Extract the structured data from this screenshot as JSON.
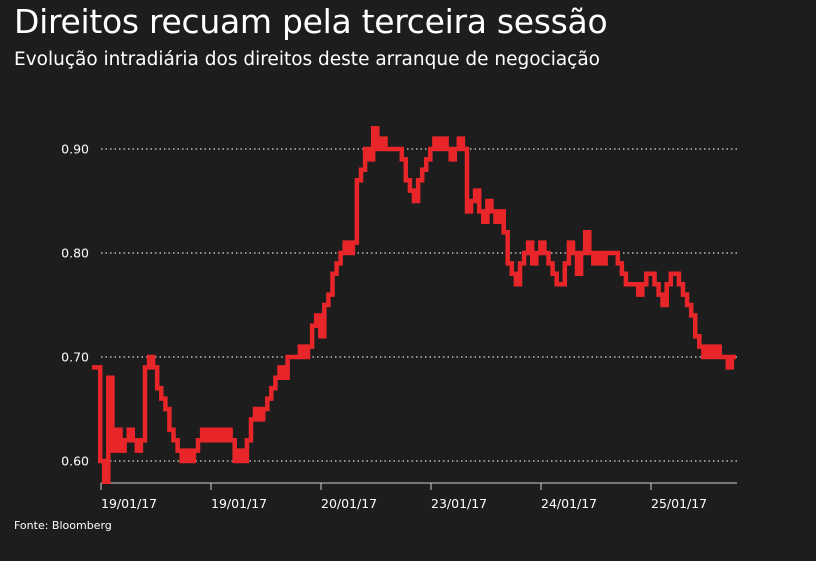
{
  "title": "Direitos recuam pela terceira sessão",
  "subtitle": "Evolução intradiária dos direitos deste arranque de negociação",
  "source": "Fonte: Bloomberg",
  "chart_data": {
    "type": "line",
    "title": "Direitos recuam pela terceira sessão",
    "subtitle": "Evolução intradiária dos direitos deste arranque de negociação",
    "xlabel": "",
    "ylabel": "",
    "ylim": [
      0.58,
      0.93
    ],
    "y_ticks": [
      "0.60",
      "0.70",
      "0.80",
      "0.90"
    ],
    "y_tick_values": [
      0.6,
      0.7,
      0.8,
      0.9
    ],
    "x_ticks": [
      "19/01/17",
      "19/01/17",
      "20/01/17",
      "23/01/17",
      "24/01/17",
      "25/01/17"
    ],
    "grid": "horizontal dotted",
    "line_color": "#e8262a",
    "series": [
      {
        "name": "",
        "points": [
          [
            0,
            0.69
          ],
          [
            1,
            0.69
          ],
          [
            2,
            0.6
          ],
          [
            3,
            0.58
          ],
          [
            4,
            0.68
          ],
          [
            5,
            0.61
          ],
          [
            6,
            0.63
          ],
          [
            7,
            0.61
          ],
          [
            8,
            0.62
          ],
          [
            9,
            0.63
          ],
          [
            10,
            0.62
          ],
          [
            11,
            0.61
          ],
          [
            12,
            0.62
          ],
          [
            13,
            0.69
          ],
          [
            14,
            0.7
          ],
          [
            15,
            0.69
          ],
          [
            16,
            0.67
          ],
          [
            17,
            0.66
          ],
          [
            18,
            0.65
          ],
          [
            19,
            0.63
          ],
          [
            20,
            0.62
          ],
          [
            21,
            0.61
          ],
          [
            22,
            0.6
          ],
          [
            23,
            0.61
          ],
          [
            24,
            0.6
          ],
          [
            25,
            0.61
          ],
          [
            26,
            0.62
          ],
          [
            27,
            0.63
          ],
          [
            28,
            0.62
          ],
          [
            29,
            0.63
          ],
          [
            30,
            0.62
          ],
          [
            31,
            0.63
          ],
          [
            32,
            0.62
          ],
          [
            33,
            0.63
          ],
          [
            34,
            0.62
          ],
          [
            35,
            0.6
          ],
          [
            36,
            0.61
          ],
          [
            37,
            0.6
          ],
          [
            38,
            0.62
          ],
          [
            39,
            0.64
          ],
          [
            40,
            0.65
          ],
          [
            41,
            0.64
          ],
          [
            42,
            0.65
          ],
          [
            43,
            0.66
          ],
          [
            44,
            0.67
          ],
          [
            45,
            0.68
          ],
          [
            46,
            0.69
          ],
          [
            47,
            0.68
          ],
          [
            48,
            0.7
          ],
          [
            49,
            0.7
          ],
          [
            50,
            0.7
          ],
          [
            51,
            0.71
          ],
          [
            52,
            0.7
          ],
          [
            53,
            0.71
          ],
          [
            54,
            0.73
          ],
          [
            55,
            0.74
          ],
          [
            56,
            0.72
          ],
          [
            57,
            0.75
          ],
          [
            58,
            0.76
          ],
          [
            59,
            0.78
          ],
          [
            60,
            0.79
          ],
          [
            61,
            0.8
          ],
          [
            62,
            0.81
          ],
          [
            63,
            0.8
          ],
          [
            64,
            0.81
          ],
          [
            65,
            0.87
          ],
          [
            66,
            0.88
          ],
          [
            67,
            0.9
          ],
          [
            68,
            0.89
          ],
          [
            69,
            0.92
          ],
          [
            70,
            0.9
          ],
          [
            71,
            0.91
          ],
          [
            72,
            0.9
          ],
          [
            73,
            0.9
          ],
          [
            74,
            0.9
          ],
          [
            75,
            0.9
          ],
          [
            76,
            0.89
          ],
          [
            77,
            0.87
          ],
          [
            78,
            0.86
          ],
          [
            79,
            0.85
          ],
          [
            80,
            0.87
          ],
          [
            81,
            0.88
          ],
          [
            82,
            0.89
          ],
          [
            83,
            0.9
          ],
          [
            84,
            0.91
          ],
          [
            85,
            0.9
          ],
          [
            86,
            0.91
          ],
          [
            87,
            0.9
          ],
          [
            88,
            0.89
          ],
          [
            89,
            0.9
          ],
          [
            90,
            0.91
          ],
          [
            91,
            0.9
          ],
          [
            92,
            0.84
          ],
          [
            93,
            0.85
          ],
          [
            94,
            0.86
          ],
          [
            95,
            0.84
          ],
          [
            96,
            0.83
          ],
          [
            97,
            0.85
          ],
          [
            98,
            0.84
          ],
          [
            99,
            0.83
          ],
          [
            100,
            0.84
          ],
          [
            101,
            0.82
          ],
          [
            102,
            0.79
          ],
          [
            103,
            0.78
          ],
          [
            104,
            0.77
          ],
          [
            105,
            0.79
          ],
          [
            106,
            0.8
          ],
          [
            107,
            0.81
          ],
          [
            108,
            0.79
          ],
          [
            109,
            0.8
          ],
          [
            110,
            0.81
          ],
          [
            111,
            0.8
          ],
          [
            112,
            0.79
          ],
          [
            113,
            0.78
          ],
          [
            114,
            0.77
          ],
          [
            115,
            0.77
          ],
          [
            116,
            0.79
          ],
          [
            117,
            0.81
          ],
          [
            118,
            0.8
          ],
          [
            119,
            0.78
          ],
          [
            120,
            0.8
          ],
          [
            121,
            0.82
          ],
          [
            122,
            0.8
          ],
          [
            123,
            0.79
          ],
          [
            124,
            0.8
          ],
          [
            125,
            0.79
          ],
          [
            126,
            0.8
          ],
          [
            127,
            0.8
          ],
          [
            128,
            0.8
          ],
          [
            129,
            0.79
          ],
          [
            130,
            0.78
          ],
          [
            131,
            0.77
          ],
          [
            132,
            0.77
          ],
          [
            133,
            0.77
          ],
          [
            134,
            0.76
          ],
          [
            135,
            0.77
          ],
          [
            136,
            0.78
          ],
          [
            137,
            0.78
          ],
          [
            138,
            0.77
          ],
          [
            139,
            0.76
          ],
          [
            140,
            0.75
          ],
          [
            141,
            0.77
          ],
          [
            142,
            0.78
          ],
          [
            143,
            0.78
          ],
          [
            144,
            0.77
          ],
          [
            145,
            0.76
          ],
          [
            146,
            0.75
          ],
          [
            147,
            0.74
          ],
          [
            148,
            0.72
          ],
          [
            149,
            0.71
          ],
          [
            150,
            0.7
          ],
          [
            151,
            0.71
          ],
          [
            152,
            0.7
          ],
          [
            153,
            0.71
          ],
          [
            154,
            0.7
          ],
          [
            155,
            0.7
          ],
          [
            156,
            0.69
          ],
          [
            157,
            0.7
          ],
          [
            158,
            0.7
          ]
        ]
      }
    ],
    "x_tick_positions": [
      2,
      29,
      56,
      83,
      110,
      137
    ]
  }
}
